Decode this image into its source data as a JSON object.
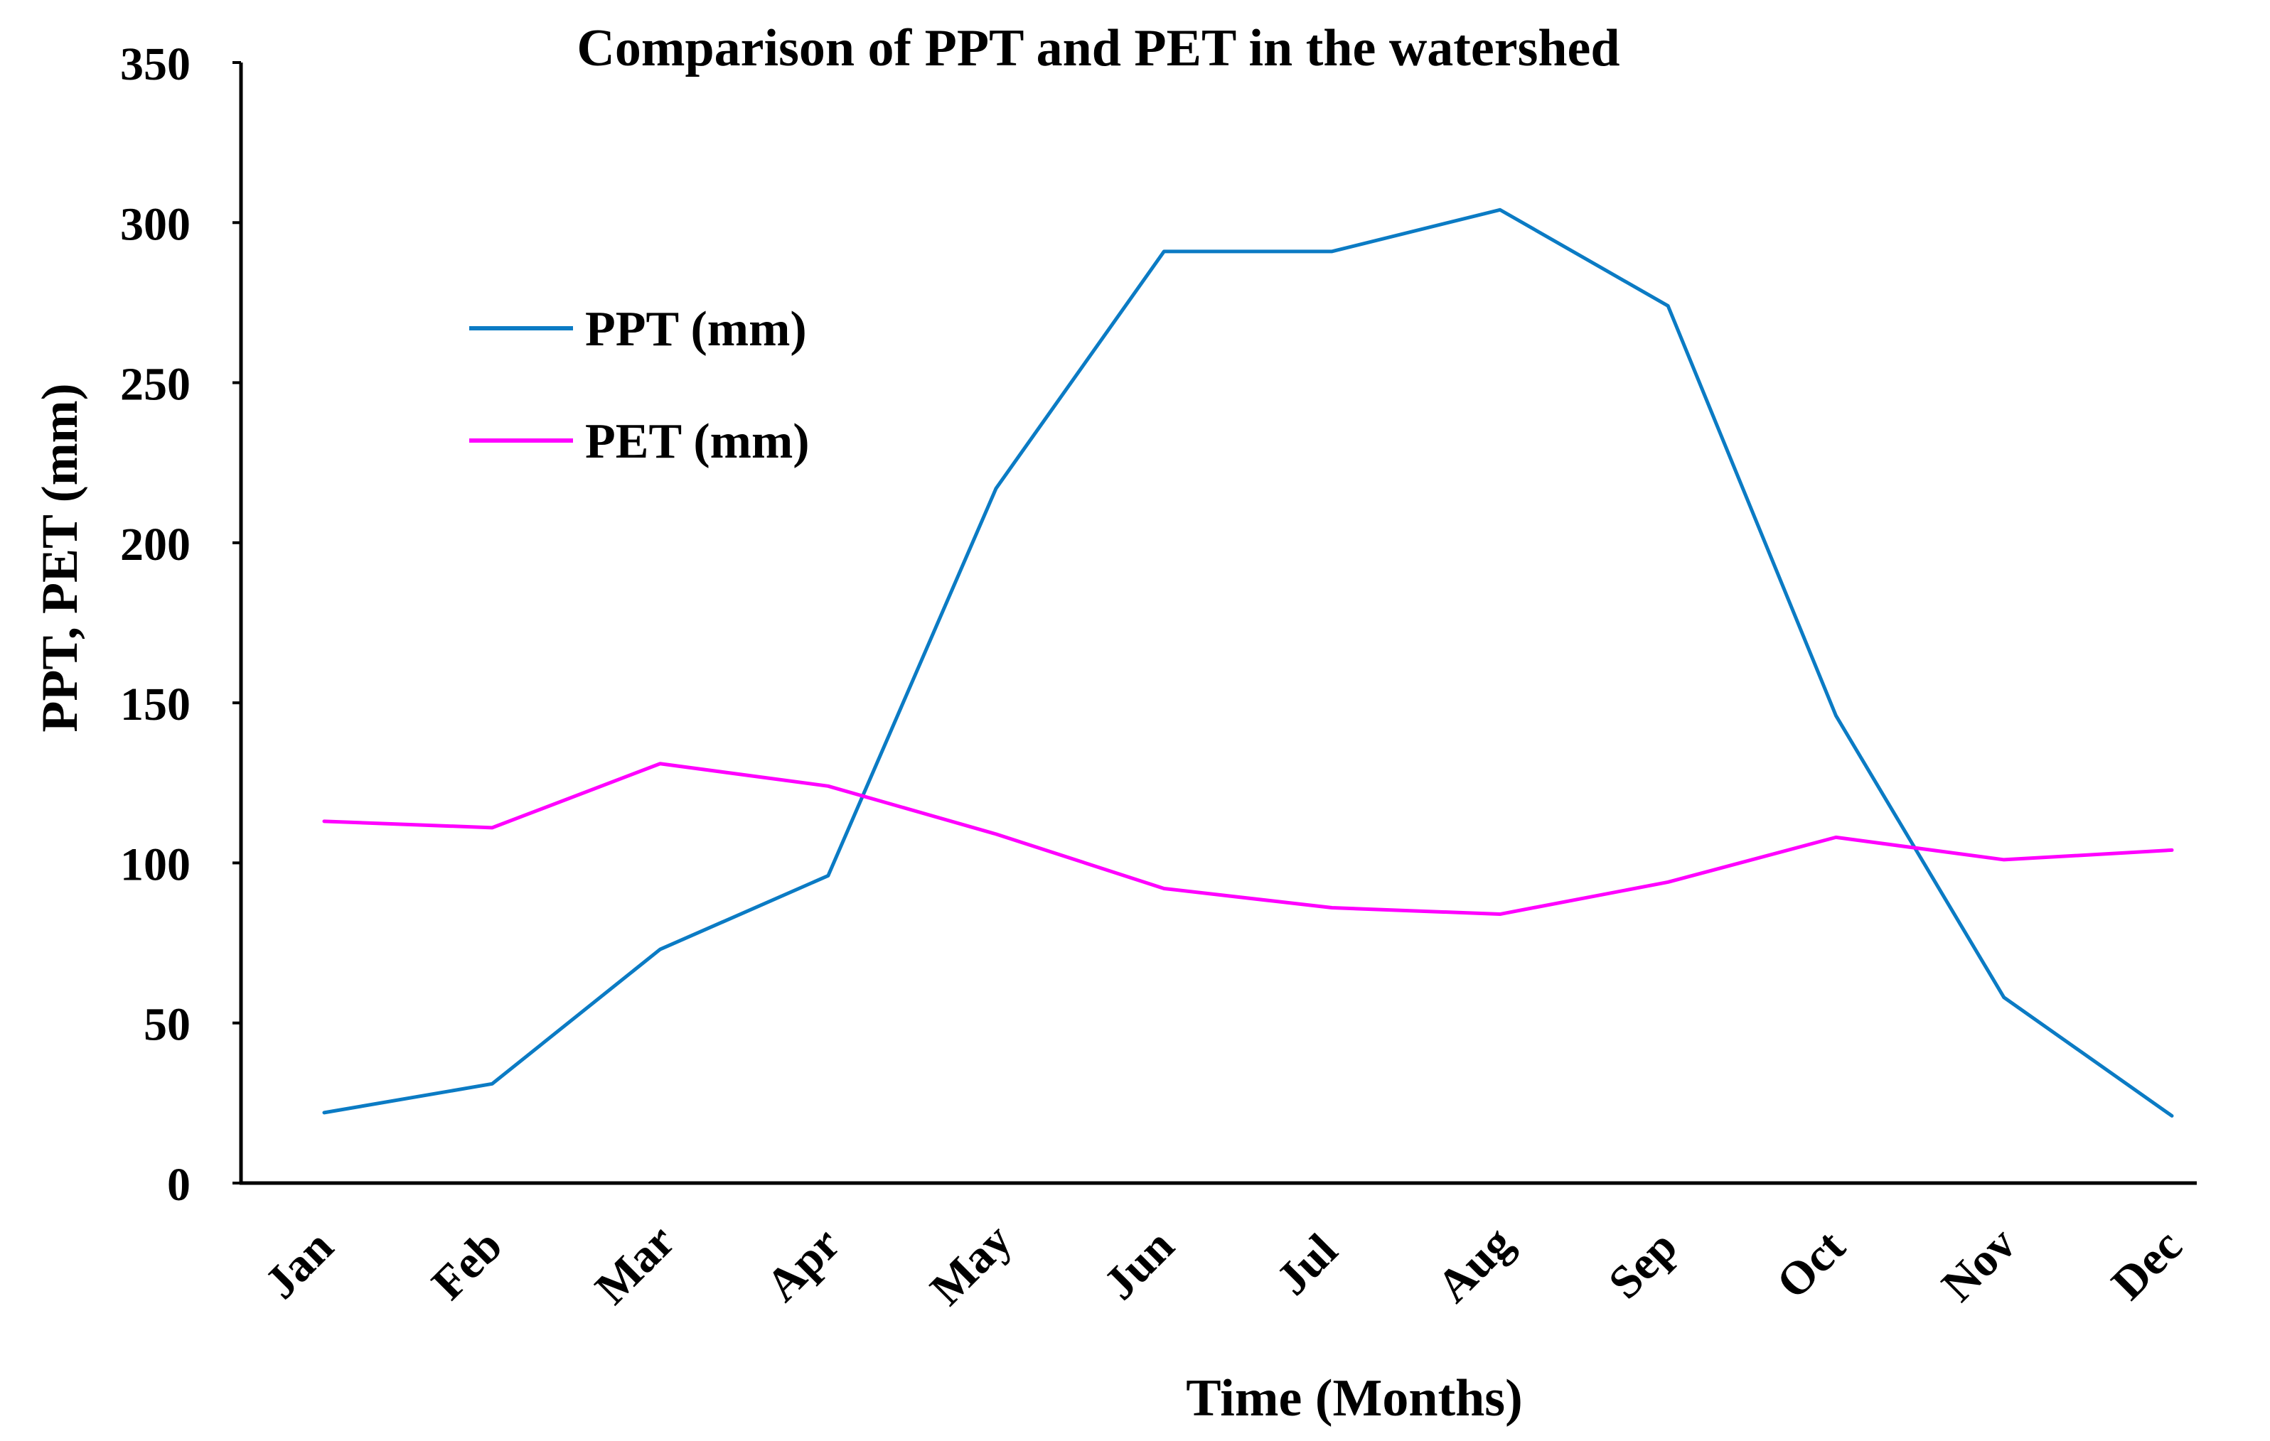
{
  "chart_data": {
    "type": "line",
    "title": "Comparison of PPT and PET in the watershed",
    "xlabel": "Time (Months)",
    "ylabel": "PPT, PET (mm)",
    "ylim": [
      0,
      350
    ],
    "yticks": [
      0,
      50,
      100,
      150,
      200,
      250,
      300,
      350
    ],
    "categories": [
      "Jan",
      "Feb",
      "Mar",
      "Apr",
      "May",
      "Jun",
      "Jul",
      "Aug",
      "Sep",
      "Oct",
      "Nov",
      "Dec"
    ],
    "grid": false,
    "legend_position": "top-left",
    "series": [
      {
        "name": "PPT (mm)",
        "color": "#0B7BC4",
        "values": [
          22,
          31,
          73,
          96,
          217,
          291,
          291,
          304,
          274,
          146,
          58,
          21
        ]
      },
      {
        "name": "PET (mm)",
        "color": "#FF00FF",
        "values": [
          113,
          111,
          131,
          124,
          109,
          92,
          86,
          84,
          94,
          108,
          101,
          104
        ]
      }
    ]
  }
}
